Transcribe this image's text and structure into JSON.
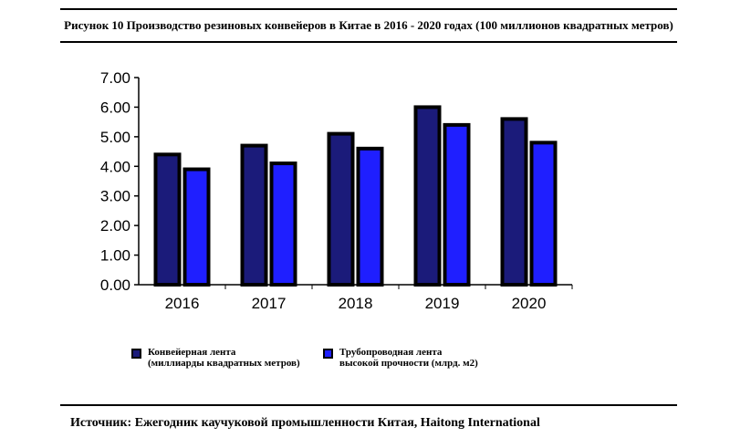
{
  "title": "Рисунок 10 Производство резиновых конвейеров в Китае в 2016 - 2020 годах (100 миллионов квадратных метров)",
  "source": "Источник: Ежегодник каучуковой промышленности Китая, Haitong International",
  "chart_data": {
    "type": "bar",
    "categories": [
      "2016",
      "2017",
      "2018",
      "2019",
      "2020"
    ],
    "series": [
      {
        "name": "Конвейерная лента (миллиарды квадратных метров)",
        "name_lines": [
          "Конвейерная лента",
          "(миллиарды квадратных метров)"
        ],
        "values": [
          4.4,
          4.7,
          5.1,
          6.0,
          5.6
        ],
        "color": "#1b1b7a"
      },
      {
        "name": "Трубопроводная лента высокой прочности (млрд. м2)",
        "name_lines": [
          "Трубопроводная лента",
          "высокой прочности (млрд. м2)"
        ],
        "values": [
          3.9,
          4.1,
          4.6,
          5.4,
          4.8
        ],
        "color": "#1f1fff"
      }
    ],
    "yticks": [
      "0.00",
      "1.00",
      "2.00",
      "3.00",
      "4.00",
      "5.00",
      "6.00",
      "7.00"
    ],
    "ylim": [
      0,
      7
    ],
    "grid": false,
    "legend_position": "bottom"
  }
}
